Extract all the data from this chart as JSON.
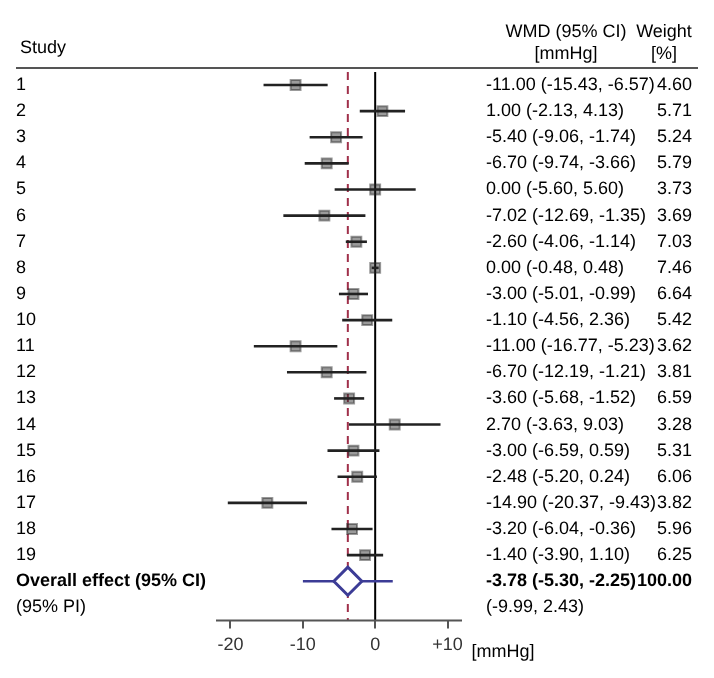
{
  "chart_data": {
    "type": "scatter",
    "orientation": "horizontal",
    "ylabel": "Study",
    "xlabel": "[mmHg]",
    "categories": [
      "1",
      "2",
      "3",
      "4",
      "5",
      "6",
      "7",
      "8",
      "9",
      "10",
      "11",
      "12",
      "13",
      "14",
      "15",
      "16",
      "17",
      "18",
      "19",
      "Overall effect (95% CI)",
      "(95% PI)"
    ],
    "series": [
      {
        "color": "#222222",
        "marker": "square",
        "values": [
          -11.0,
          1.0,
          -5.4,
          -6.7,
          0.0,
          -7.02,
          -2.6,
          0.0,
          -3.0,
          -1.1,
          -11.0,
          -6.7,
          -3.6,
          2.7,
          -3.0,
          -2.48,
          -14.9,
          -3.2,
          -1.4,
          null,
          null
        ],
        "errors": [
          [
            -15.43,
            -6.57
          ],
          [
            -2.13,
            4.13
          ],
          [
            -9.06,
            -1.74
          ],
          [
            -9.74,
            -3.66
          ],
          [
            -5.6,
            5.6
          ],
          [
            -12.69,
            -1.35
          ],
          [
            -4.06,
            -1.14
          ],
          [
            -0.48,
            0.48
          ],
          [
            -5.01,
            -0.99
          ],
          [
            -4.56,
            2.36
          ],
          [
            -16.77,
            -5.23
          ],
          [
            -12.19,
            -1.21
          ],
          [
            -5.68,
            -1.52
          ],
          [
            -3.63,
            9.03
          ],
          [
            -6.59,
            0.59
          ],
          [
            -5.2,
            0.24
          ],
          [
            -20.37,
            -9.43
          ],
          [
            -6.04,
            -0.36
          ],
          [
            -3.9,
            1.1
          ],
          null,
          null
        ]
      },
      {
        "color": "#3c3c96",
        "marker": "diamond",
        "values": [
          null,
          null,
          null,
          null,
          null,
          null,
          null,
          null,
          null,
          null,
          null,
          null,
          null,
          null,
          null,
          null,
          null,
          null,
          null,
          -3.78,
          null
        ],
        "errors": [
          null,
          null,
          null,
          null,
          null,
          null,
          null,
          null,
          null,
          null,
          null,
          null,
          null,
          null,
          null,
          null,
          null,
          null,
          null,
          [
            -9.99,
            2.43
          ],
          null
        ]
      }
    ],
    "xlim": [
      -22,
      12
    ],
    "xticks": [
      -20,
      -10,
      0,
      {
        "value": 10,
        "label": "+10"
      }
    ],
    "ref_lines": [
      {
        "axis": "x",
        "value": 0,
        "color": "#000000",
        "line_style": "solid"
      },
      {
        "axis": "x",
        "value": -3.78,
        "color": "#a0304a",
        "line_style": "dashed"
      }
    ],
    "annotations": [
      "WMD (95% CI)",
      "[mmHg]",
      "Weight",
      "[%]",
      "-11.00 (-15.43, -6.57)",
      "1.00 (-2.13, 4.13)",
      "-5.40 (-9.06, -1.74)",
      "-6.70 (-9.74, -3.66)",
      "0.00 (-5.60, 5.60)",
      "-7.02 (-12.69, -1.35)",
      "-2.60 (-4.06, -1.14)",
      "0.00 (-0.48, 0.48)",
      "-3.00 (-5.01, -0.99)",
      "-1.10 (-4.56, 2.36)",
      "-11.00 (-16.77, -5.23)",
      "-6.70 (-12.19, -1.21)",
      "-3.60 (-5.68, -1.52)",
      "2.70 (-3.63, 9.03)",
      "-3.00 (-6.59, 0.59)",
      "-2.48 (-5.20, 0.24)",
      "-14.90 (-20.37, -9.43)",
      "-3.20 (-6.04, -0.36)",
      "-1.40 (-3.90, 1.10)",
      "-3.78 (-5.30, -2.25)",
      "(-9.99, 2.43)",
      "4.60",
      "5.71",
      "5.24",
      "5.79",
      "3.73",
      "3.69",
      "7.03",
      "7.46",
      "6.64",
      "5.42",
      "3.62",
      "3.81",
      "6.59",
      "3.28",
      "5.31",
      "6.06",
      "3.82",
      "5.96",
      "6.25",
      "100.00"
    ],
    "grid": false,
    "legend": false
  }
}
